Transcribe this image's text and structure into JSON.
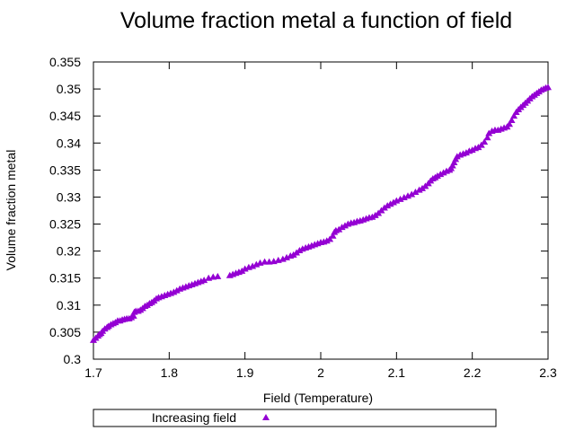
{
  "chart_data": {
    "type": "scatter",
    "title": "Volume fraction metal a function of field",
    "xlabel": "Field (Temperature)",
    "ylabel": "Volume fraction metal",
    "xlim": [
      1.7,
      2.3
    ],
    "ylim": [
      0.3,
      0.355
    ],
    "x_ticks": [
      "1.7",
      "1.8",
      "1.9",
      "2",
      "2.1",
      "2.2",
      "2.3"
    ],
    "y_ticks": [
      "0.3",
      "0.305",
      "0.31",
      "0.315",
      "0.32",
      "0.325",
      "0.33",
      "0.335",
      "0.34",
      "0.345",
      "0.35",
      "0.355"
    ],
    "grid": false,
    "legend_position": "bottom",
    "series": [
      {
        "name": "Increasing field",
        "marker": "triangle",
        "color": "#9400d3",
        "points": [
          [
            1.7,
            0.3035
          ],
          [
            1.703,
            0.3039
          ],
          [
            1.706,
            0.3043
          ],
          [
            1.708,
            0.3046
          ],
          [
            1.71,
            0.3048
          ],
          [
            1.712,
            0.3052
          ],
          [
            1.715,
            0.3056
          ],
          [
            1.718,
            0.3059
          ],
          [
            1.72,
            0.3061
          ],
          [
            1.723,
            0.3064
          ],
          [
            1.726,
            0.3066
          ],
          [
            1.729,
            0.3068
          ],
          [
            1.732,
            0.3071
          ],
          [
            1.735,
            0.3071
          ],
          [
            1.738,
            0.3073
          ],
          [
            1.741,
            0.3074
          ],
          [
            1.744,
            0.3075
          ],
          [
            1.747,
            0.3075
          ],
          [
            1.75,
            0.3077
          ],
          [
            1.753,
            0.308
          ],
          [
            1.754,
            0.3087
          ],
          [
            1.756,
            0.3089
          ],
          [
            1.759,
            0.3089
          ],
          [
            1.762,
            0.3091
          ],
          [
            1.765,
            0.3094
          ],
          [
            1.768,
            0.3098
          ],
          [
            1.771,
            0.31
          ],
          [
            1.774,
            0.3103
          ],
          [
            1.777,
            0.3105
          ],
          [
            1.78,
            0.3108
          ],
          [
            1.783,
            0.3112
          ],
          [
            1.786,
            0.3114
          ],
          [
            1.79,
            0.3116
          ],
          [
            1.794,
            0.3118
          ],
          [
            1.798,
            0.312
          ],
          [
            1.802,
            0.3122
          ],
          [
            1.806,
            0.3124
          ],
          [
            1.81,
            0.3127
          ],
          [
            1.814,
            0.313
          ],
          [
            1.818,
            0.3132
          ],
          [
            1.822,
            0.3134
          ],
          [
            1.826,
            0.3136
          ],
          [
            1.83,
            0.3138
          ],
          [
            1.834,
            0.314
          ],
          [
            1.838,
            0.3142
          ],
          [
            1.842,
            0.3144
          ],
          [
            1.846,
            0.3146
          ],
          [
            1.852,
            0.315
          ],
          [
            1.858,
            0.3152
          ],
          [
            1.864,
            0.3153
          ],
          [
            1.88,
            0.3155
          ],
          [
            1.884,
            0.3157
          ],
          [
            1.888,
            0.3159
          ],
          [
            1.892,
            0.3161
          ],
          [
            1.896,
            0.3163
          ],
          [
            1.9,
            0.3167
          ],
          [
            1.905,
            0.317
          ],
          [
            1.91,
            0.3172
          ],
          [
            1.915,
            0.3175
          ],
          [
            1.92,
            0.3178
          ],
          [
            1.926,
            0.318
          ],
          [
            1.932,
            0.318
          ],
          [
            1.938,
            0.3181
          ],
          [
            1.944,
            0.3183
          ],
          [
            1.95,
            0.3185
          ],
          [
            1.955,
            0.3188
          ],
          [
            1.96,
            0.3191
          ],
          [
            1.964,
            0.3193
          ],
          [
            1.968,
            0.3197
          ],
          [
            1.972,
            0.3201
          ],
          [
            1.976,
            0.3204
          ],
          [
            1.98,
            0.3206
          ],
          [
            1.984,
            0.3208
          ],
          [
            1.988,
            0.321
          ],
          [
            1.992,
            0.3212
          ],
          [
            1.996,
            0.3214
          ],
          [
            2.0,
            0.3216
          ],
          [
            2.004,
            0.3217
          ],
          [
            2.008,
            0.3219
          ],
          [
            2.012,
            0.3222
          ],
          [
            2.016,
            0.3228
          ],
          [
            2.018,
            0.3235
          ],
          [
            2.02,
            0.3238
          ],
          [
            2.024,
            0.324
          ],
          [
            2.028,
            0.3244
          ],
          [
            2.032,
            0.3247
          ],
          [
            2.036,
            0.325
          ],
          [
            2.04,
            0.3252
          ],
          [
            2.044,
            0.3253
          ],
          [
            2.048,
            0.3255
          ],
          [
            2.052,
            0.3256
          ],
          [
            2.056,
            0.3258
          ],
          [
            2.06,
            0.326
          ],
          [
            2.064,
            0.3262
          ],
          [
            2.068,
            0.3263
          ],
          [
            2.072,
            0.3266
          ],
          [
            2.076,
            0.327
          ],
          [
            2.08,
            0.3275
          ],
          [
            2.084,
            0.328
          ],
          [
            2.088,
            0.3284
          ],
          [
            2.092,
            0.3287
          ],
          [
            2.096,
            0.329
          ],
          [
            2.1,
            0.3293
          ],
          [
            2.105,
            0.3296
          ],
          [
            2.11,
            0.3299
          ],
          [
            2.115,
            0.3302
          ],
          [
            2.12,
            0.3305
          ],
          [
            2.125,
            0.3309
          ],
          [
            2.13,
            0.3313
          ],
          [
            2.134,
            0.3316
          ],
          [
            2.138,
            0.332
          ],
          [
            2.142,
            0.3325
          ],
          [
            2.145,
            0.333
          ],
          [
            2.148,
            0.3334
          ],
          [
            2.151,
            0.3336
          ],
          [
            2.154,
            0.3339
          ],
          [
            2.158,
            0.3342
          ],
          [
            2.162,
            0.3345
          ],
          [
            2.166,
            0.3348
          ],
          [
            2.17,
            0.335
          ],
          [
            2.172,
            0.3353
          ],
          [
            2.174,
            0.3358
          ],
          [
            2.176,
            0.3364
          ],
          [
            2.178,
            0.337
          ],
          [
            2.18,
            0.3375
          ],
          [
            2.184,
            0.3378
          ],
          [
            2.188,
            0.338
          ],
          [
            2.192,
            0.3382
          ],
          [
            2.196,
            0.3385
          ],
          [
            2.2,
            0.3387
          ],
          [
            2.204,
            0.339
          ],
          [
            2.208,
            0.3392
          ],
          [
            2.212,
            0.3396
          ],
          [
            2.216,
            0.3402
          ],
          [
            2.22,
            0.341
          ],
          [
            2.222,
            0.3418
          ],
          [
            2.226,
            0.3422
          ],
          [
            2.23,
            0.3424
          ],
          [
            2.234,
            0.3424
          ],
          [
            2.238,
            0.3426
          ],
          [
            2.242,
            0.3428
          ],
          [
            2.246,
            0.343
          ],
          [
            2.249,
            0.3435
          ],
          [
            2.252,
            0.3442
          ],
          [
            2.255,
            0.345
          ],
          [
            2.258,
            0.3457
          ],
          [
            2.261,
            0.3462
          ],
          [
            2.264,
            0.3466
          ],
          [
            2.267,
            0.347
          ],
          [
            2.27,
            0.3474
          ],
          [
            2.273,
            0.3478
          ],
          [
            2.276,
            0.3482
          ],
          [
            2.279,
            0.3486
          ],
          [
            2.282,
            0.3489
          ],
          [
            2.285,
            0.3492
          ],
          [
            2.288,
            0.3495
          ],
          [
            2.291,
            0.3498
          ],
          [
            2.294,
            0.35
          ],
          [
            2.297,
            0.3502
          ],
          [
            2.3,
            0.3503
          ]
        ]
      }
    ]
  }
}
